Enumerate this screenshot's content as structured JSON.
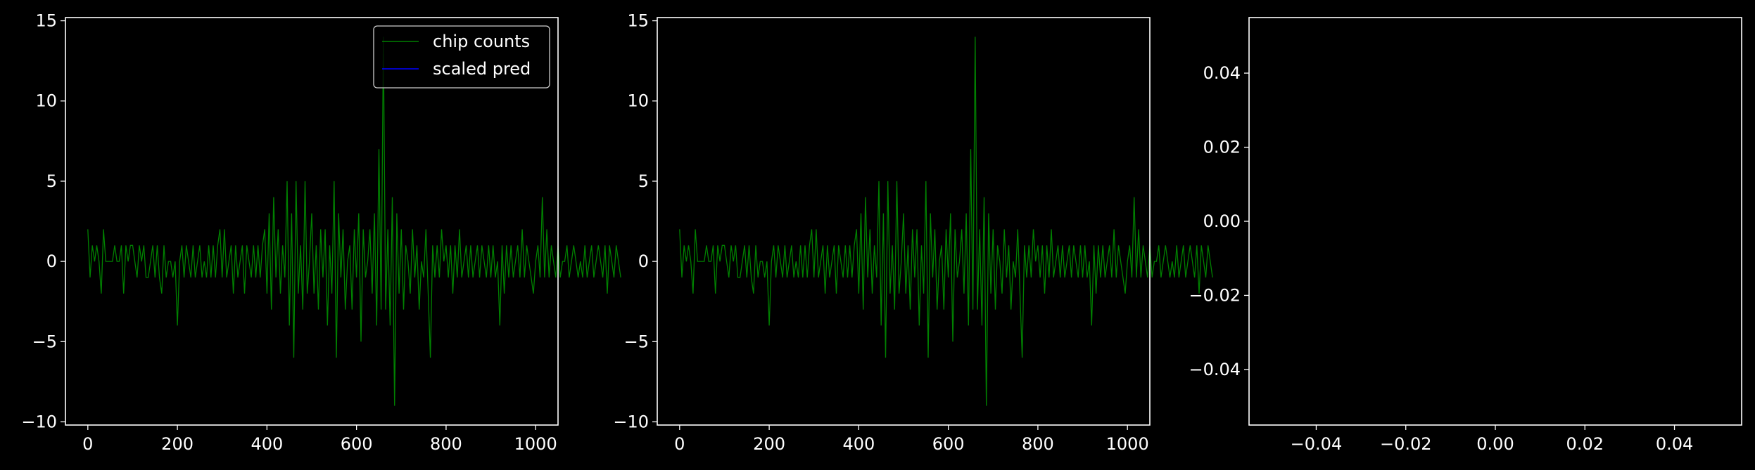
{
  "figure": {
    "background": "#000000",
    "foreground": "#ffffff"
  },
  "chart_data": [
    {
      "type": "line",
      "title": "",
      "xlabel": "",
      "ylabel": "",
      "xlim": [
        -50,
        1050
      ],
      "ylim": [
        -10.2,
        15.2
      ],
      "xticks": [
        0,
        200,
        400,
        600,
        800,
        1000
      ],
      "xtick_labels": [
        "0",
        "200",
        "400",
        "600",
        "800",
        "1000"
      ],
      "yticks": [
        -10,
        -5,
        0,
        5,
        10,
        15
      ],
      "ytick_labels": [
        "−10",
        "−5",
        "0",
        "5",
        "10",
        "15"
      ],
      "grid": false,
      "legend": {
        "placement": "top-right",
        "entries": [
          "chip counts",
          "scaled pred"
        ]
      },
      "series": [
        {
          "name": "chip counts",
          "color": "#008000",
          "x_start": 0,
          "x_step": 5,
          "values": [
            2,
            -1,
            1,
            0,
            1,
            0,
            -2,
            2,
            0,
            0,
            0,
            0,
            1,
            0,
            0,
            1,
            -2,
            1,
            0,
            1,
            1,
            0,
            -1,
            1,
            0,
            1,
            -1,
            -1,
            0,
            1,
            -1,
            1,
            -1,
            -2,
            1,
            -1,
            0,
            0,
            -1,
            0,
            -4,
            0,
            1,
            -1,
            1,
            0,
            -1,
            1,
            -1,
            0,
            1,
            -1,
            0,
            -1,
            1,
            -1,
            1,
            -1,
            1,
            2,
            -1,
            2,
            -1,
            0,
            1,
            -2,
            1,
            -1,
            0,
            1,
            -2,
            1,
            0,
            -1,
            1,
            -1,
            1,
            -1,
            1,
            2,
            -2,
            3,
            -3,
            4,
            -1,
            2,
            -2,
            1,
            -1,
            5,
            -4,
            3,
            -6,
            5,
            -2,
            1,
            -3,
            5,
            -2,
            0,
            3,
            -2,
            1,
            -3,
            2,
            -1,
            2,
            -4,
            1,
            -2,
            5,
            -6,
            3,
            -1,
            2,
            -3,
            0,
            1,
            -3,
            2,
            -1,
            3,
            -5,
            2,
            -1,
            0,
            2,
            -2,
            3,
            -4,
            7,
            -3,
            14,
            -3,
            2,
            -4,
            4,
            -9,
            3,
            -2,
            2,
            -3,
            1,
            0,
            -2,
            2,
            -1,
            1,
            -3,
            0,
            -1,
            2,
            -2,
            -6,
            1,
            -1,
            1,
            -1,
            2,
            0,
            1,
            -1,
            1,
            -2,
            1,
            -1,
            2,
            -1,
            0,
            1,
            -1,
            1,
            -1,
            0,
            1,
            -1,
            1,
            0,
            -1,
            1,
            -1,
            1,
            -1,
            0,
            -4,
            1,
            -2,
            1,
            -1,
            1,
            -1,
            0,
            1,
            -1,
            2,
            -1,
            1,
            0,
            -1,
            -2,
            0,
            1,
            -1,
            4,
            -1,
            2,
            -1,
            1,
            0,
            -1,
            1,
            -1,
            0,
            0,
            1,
            -1,
            0,
            1,
            0,
            -1,
            0,
            -1,
            1,
            -1,
            0,
            1,
            -1,
            0,
            1,
            0,
            -1,
            1,
            -2,
            1,
            0,
            -1,
            1,
            0,
            -1
          ]
        },
        {
          "name": "scaled pred",
          "color": "#0000ff",
          "x_start": 0,
          "x_step": 5,
          "values": []
        }
      ]
    },
    {
      "type": "line",
      "title": "",
      "xlabel": "",
      "ylabel": "",
      "xlim": [
        -50,
        1050
      ],
      "ylim": [
        -10.2,
        15.2
      ],
      "xticks": [
        0,
        200,
        400,
        600,
        800,
        1000
      ],
      "xtick_labels": [
        "0",
        "200",
        "400",
        "600",
        "800",
        "1000"
      ],
      "yticks": [
        -10,
        -5,
        0,
        5,
        10,
        15
      ],
      "ytick_labels": [
        "−10",
        "−5",
        "0",
        "5",
        "10",
        "15"
      ],
      "grid": false,
      "series": [
        {
          "color": "#008000",
          "x_start": 0,
          "x_step": 5,
          "values": [
            2,
            -1,
            1,
            0,
            1,
            0,
            -2,
            2,
            0,
            0,
            0,
            0,
            1,
            0,
            0,
            1,
            -2,
            1,
            0,
            1,
            1,
            0,
            -1,
            1,
            0,
            1,
            -1,
            -1,
            0,
            1,
            -1,
            1,
            -1,
            -2,
            1,
            -1,
            0,
            0,
            -1,
            0,
            -4,
            0,
            1,
            -1,
            1,
            0,
            -1,
            1,
            -1,
            0,
            1,
            -1,
            0,
            -1,
            1,
            -1,
            1,
            -1,
            1,
            2,
            -1,
            2,
            -1,
            0,
            1,
            -2,
            1,
            -1,
            0,
            1,
            -2,
            1,
            0,
            -1,
            1,
            -1,
            1,
            -1,
            1,
            2,
            -2,
            3,
            -3,
            4,
            -1,
            2,
            -2,
            1,
            -1,
            5,
            -4,
            3,
            -6,
            5,
            -2,
            1,
            -3,
            5,
            -2,
            0,
            3,
            -2,
            1,
            -3,
            2,
            -1,
            2,
            -4,
            1,
            -2,
            5,
            -6,
            3,
            -1,
            2,
            -3,
            0,
            1,
            -3,
            2,
            -1,
            3,
            -5,
            2,
            -1,
            0,
            2,
            -2,
            3,
            -4,
            7,
            -3,
            14,
            -3,
            2,
            -4,
            4,
            -9,
            3,
            -2,
            2,
            -3,
            1,
            0,
            -2,
            2,
            -1,
            1,
            -3,
            0,
            -1,
            2,
            -2,
            -6,
            1,
            -1,
            1,
            -1,
            2,
            0,
            1,
            -1,
            1,
            -2,
            1,
            -1,
            2,
            -1,
            0,
            1,
            -1,
            1,
            -1,
            0,
            1,
            -1,
            1,
            0,
            -1,
            1,
            -1,
            1,
            -1,
            0,
            -4,
            1,
            -2,
            1,
            -1,
            1,
            -1,
            0,
            1,
            -1,
            2,
            -1,
            1,
            0,
            -1,
            -2,
            0,
            1,
            -1,
            4,
            -1,
            2,
            -1,
            1,
            0,
            -1,
            1,
            -1,
            0,
            0,
            1,
            -1,
            0,
            1,
            0,
            -1,
            0,
            -1,
            1,
            -1,
            0,
            1,
            -1,
            0,
            1,
            0,
            -1,
            1,
            -2,
            1,
            0,
            -1,
            1,
            0,
            -1
          ]
        }
      ]
    },
    {
      "type": "line",
      "title": "",
      "xlabel": "",
      "ylabel": "",
      "xlim": [
        -0.055,
        0.055
      ],
      "ylim": [
        -0.055,
        0.055
      ],
      "xticks": [
        -0.04,
        -0.02,
        0.0,
        0.02,
        0.04
      ],
      "xtick_labels": [
        "−0.04",
        "−0.02",
        "0.00",
        "0.02",
        "0.04"
      ],
      "yticks": [
        -0.04,
        -0.02,
        0.0,
        0.02,
        0.04
      ],
      "ytick_labels": [
        "−0.04",
        "−0.02",
        "0.00",
        "0.02",
        "0.04"
      ],
      "grid": false,
      "series": []
    }
  ]
}
